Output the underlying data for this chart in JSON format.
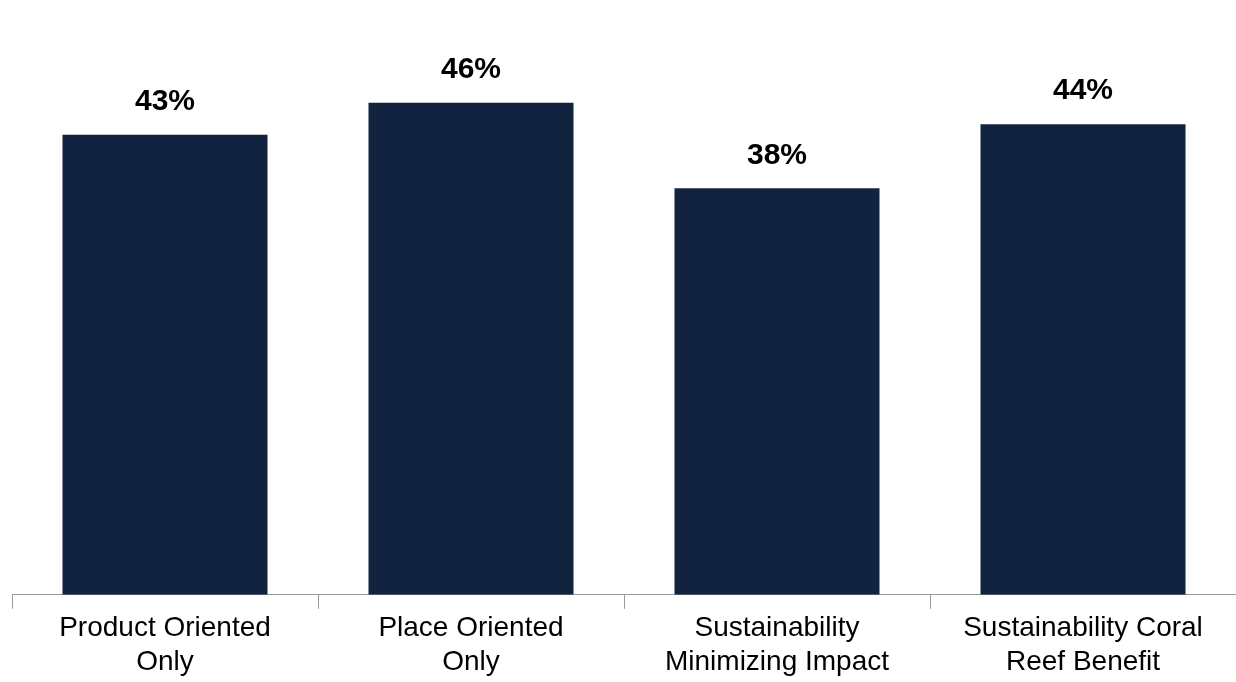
{
  "chart_data": {
    "type": "bar",
    "categories": [
      "Product Oriented\nOnly",
      "Place Oriented\nOnly",
      "Sustainability\nMinimizing Impact",
      "Sustainability Coral\nReef Benefit"
    ],
    "values": [
      43,
      46,
      38,
      44
    ],
    "color": "#12233f",
    "value_labels": [
      "43%",
      "46%",
      "38%",
      "44%"
    ],
    "grid": false,
    "legend": false,
    "tick_labels": "x"
  }
}
